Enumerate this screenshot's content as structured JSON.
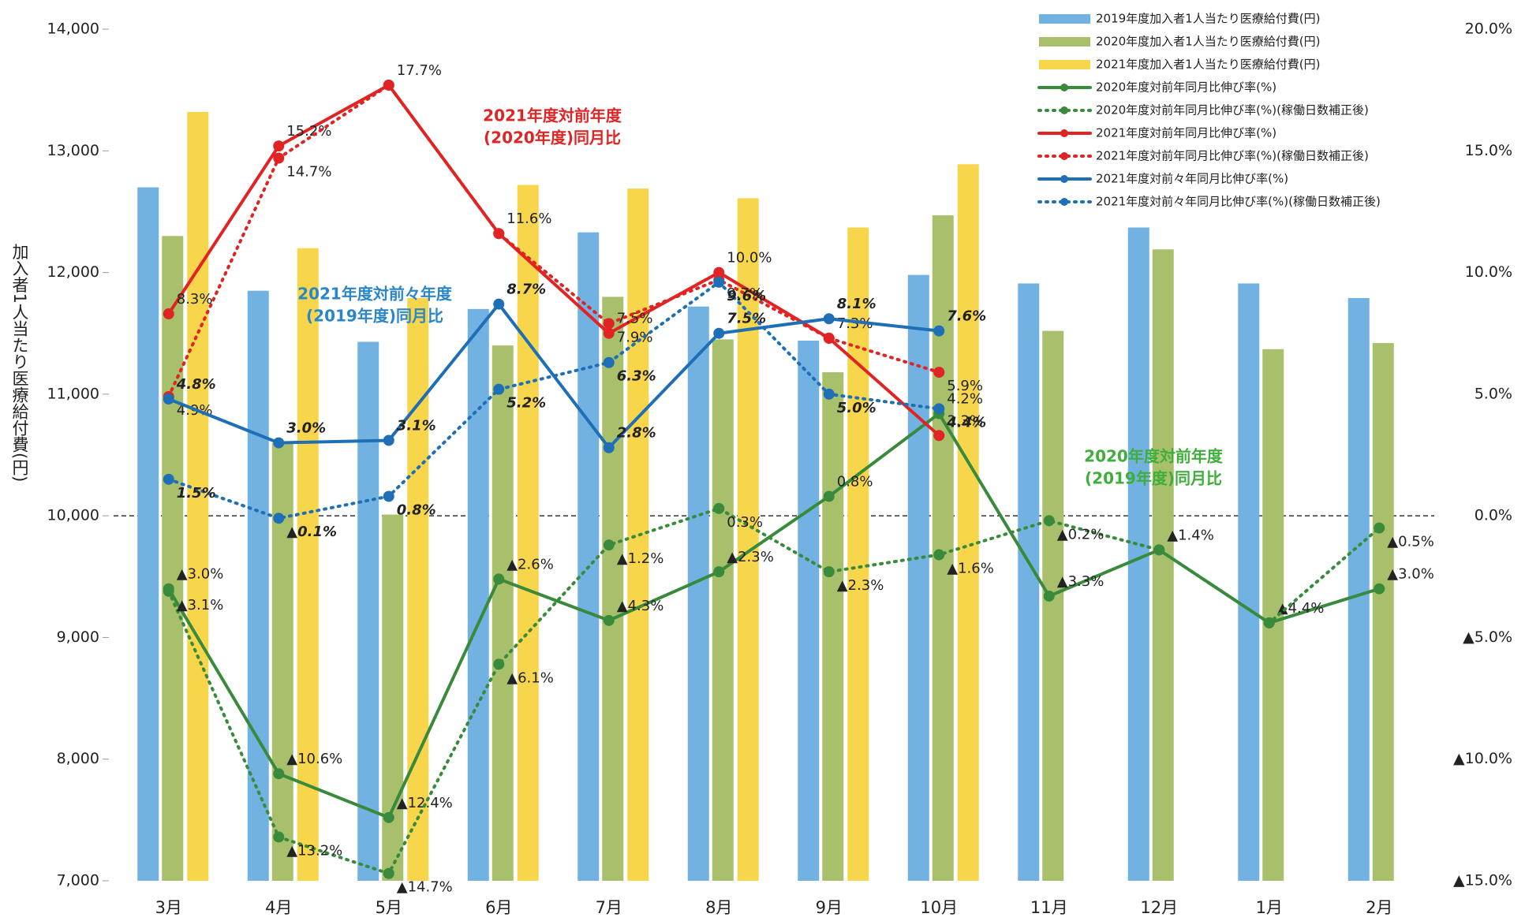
{
  "chart_data": {
    "type": "bar",
    "y_label": "加入者1人当たり医療給付費(円)",
    "categories": [
      "3月",
      "4月",
      "5月",
      "6月",
      "7月",
      "8月",
      "9月",
      "10月",
      "11月",
      "12月",
      "1月",
      "2月"
    ],
    "ylim": [
      7000,
      14000
    ],
    "yticks": [
      {
        "value": 7000,
        "label": "7,000"
      },
      {
        "value": 8000,
        "label": "8,000"
      },
      {
        "value": 9000,
        "label": "9,000"
      },
      {
        "value": 10000,
        "label": "10,000"
      },
      {
        "value": 11000,
        "label": "11,000"
      },
      {
        "value": 12000,
        "label": "12,000"
      },
      {
        "value": 13000,
        "label": "13,000"
      },
      {
        "value": 14000,
        "label": "14,000"
      }
    ],
    "y2lim": [
      -15,
      20
    ],
    "y2ticks": [
      {
        "value": -15,
        "label": "▲15.0%"
      },
      {
        "value": -10,
        "label": "▲10.0%"
      },
      {
        "value": -5,
        "label": "▲5.0%"
      },
      {
        "value": 0,
        "label": "0.0%"
      },
      {
        "value": 5,
        "label": "5.0%"
      },
      {
        "value": 10,
        "label": "10.0%"
      },
      {
        "value": 15,
        "label": "15.0%"
      },
      {
        "value": 20,
        "label": "20.0%"
      }
    ],
    "legend": "top-right",
    "series": [
      {
        "name": "2019年度加入者1人当たり医療給付費(円)",
        "type": "bar",
        "color": "#71b2e2",
        "values": [
          12700,
          11850,
          11430,
          11700,
          12330,
          11720,
          11440,
          11980,
          11910,
          12370,
          11910,
          11790
        ]
      },
      {
        "name": "2020年度加入者1人当たり医療給付費(円)",
        "type": "bar",
        "color": "#a8c06c",
        "values": [
          12300,
          10600,
          10010,
          11400,
          11800,
          11450,
          11180,
          12470,
          11520,
          12190,
          11370,
          11420
        ]
      },
      {
        "name": "2021年度加入者1人当たり医療給付費(円)",
        "type": "bar",
        "color": "#f8d64c",
        "values": [
          13320,
          12200,
          11790,
          12720,
          12690,
          12610,
          12370,
          12890,
          null,
          null,
          null,
          null
        ]
      },
      {
        "name": "2020年度対前年同月比伸び率(%)",
        "type": "line",
        "axis": "y2",
        "color": "#3a8a3c",
        "dashed": false,
        "values": [
          -3.0,
          -10.6,
          -12.4,
          -2.6,
          -4.3,
          -2.3,
          0.8,
          4.2,
          -3.3,
          -1.4,
          -4.4,
          -3.0
        ],
        "value_labels": [
          "▲3.0%",
          "▲10.6%",
          "▲12.4%",
          "▲2.6%",
          "▲4.3%",
          "▲2.3%",
          "0.8%",
          "4.2%",
          "▲3.3%",
          "▲1.4%",
          "▲4.4%",
          "▲3.0%"
        ]
      },
      {
        "name": "2020年度対前年同月比伸び率(%)(稼働日数補正後)",
        "type": "line",
        "axis": "y2",
        "color": "#3a8a3c",
        "dashed": true,
        "values": [
          -3.1,
          -13.2,
          -14.7,
          -6.1,
          -1.2,
          0.3,
          -2.3,
          -1.6,
          -0.2,
          -1.4,
          -4.4,
          -0.5
        ],
        "value_labels": [
          "▲3.1%",
          "▲13.2%",
          "▲14.7%",
          "▲6.1%",
          "▲1.2%",
          "0.3%",
          "▲2.3%",
          "▲1.6%",
          "▲0.2%",
          null,
          null,
          "▲0.5%"
        ]
      },
      {
        "name": "2021年度対前年同月比伸び率(%)",
        "type": "line",
        "axis": "y2",
        "color": "#e02424",
        "dashed": false,
        "values": [
          8.3,
          15.2,
          17.7,
          11.6,
          7.5,
          10.0,
          7.3,
          3.3,
          null,
          null,
          null,
          null
        ],
        "value_labels": [
          "8.3%",
          "15.2%",
          "17.7%",
          "11.6%",
          "7.5%",
          "10.0%",
          "7.3%",
          "3.3%",
          null,
          null,
          null,
          null
        ]
      },
      {
        "name": "2021年度対前年同月比伸び率(%)(稼働日数補正後)",
        "type": "line",
        "axis": "y2",
        "color": "#e02424",
        "dashed": true,
        "values": [
          4.9,
          14.7,
          17.7,
          11.6,
          7.9,
          9.7,
          7.3,
          5.9,
          null,
          null,
          null,
          null
        ],
        "value_labels": [
          "4.9%",
          "14.7%",
          null,
          null,
          "7.9%",
          "9.7%",
          null,
          "5.9%",
          null,
          null,
          null,
          null
        ]
      },
      {
        "name": "2021年度対前々年同月比伸び率(%)",
        "type": "line",
        "axis": "y2",
        "color": "#1f6fb6",
        "dashed": false,
        "values": [
          4.8,
          3.0,
          3.1,
          8.7,
          2.8,
          7.5,
          8.1,
          7.6,
          null,
          null,
          null,
          null
        ],
        "value_labels": [
          "4.8%",
          "3.0%",
          "3.1%",
          "8.7%",
          "2.8%",
          "7.5%",
          "8.1%",
          "7.6%",
          null,
          null,
          null,
          null
        ]
      },
      {
        "name": "2021年度対前々年同月比伸び率(%)(稼働日数補正後)",
        "type": "line",
        "axis": "y2",
        "color": "#1f6fb6",
        "dashed": true,
        "values": [
          1.5,
          -0.1,
          0.8,
          5.2,
          6.3,
          9.6,
          5.0,
          4.4,
          null,
          null,
          null,
          null
        ],
        "value_labels": [
          "1.5%",
          "▲0.1%",
          "0.8%",
          "5.2%",
          "6.3%",
          "9.6%",
          "5.0%",
          "4.4%",
          null,
          null,
          null,
          null
        ]
      }
    ],
    "annotations": [
      {
        "lines": [
          "2021年度対前年度",
          "(2020年度)同月比"
        ],
        "color": "#e02424",
        "category": 4
      },
      {
        "lines": [
          "2021年度対前々年度",
          "(2019年度)同月比"
        ],
        "color": "#2a86c8",
        "category": 2
      },
      {
        "lines": [
          "2020年度対前年度",
          "(2019年度)同月比"
        ],
        "color": "#3fae3a",
        "category": 9
      }
    ]
  }
}
